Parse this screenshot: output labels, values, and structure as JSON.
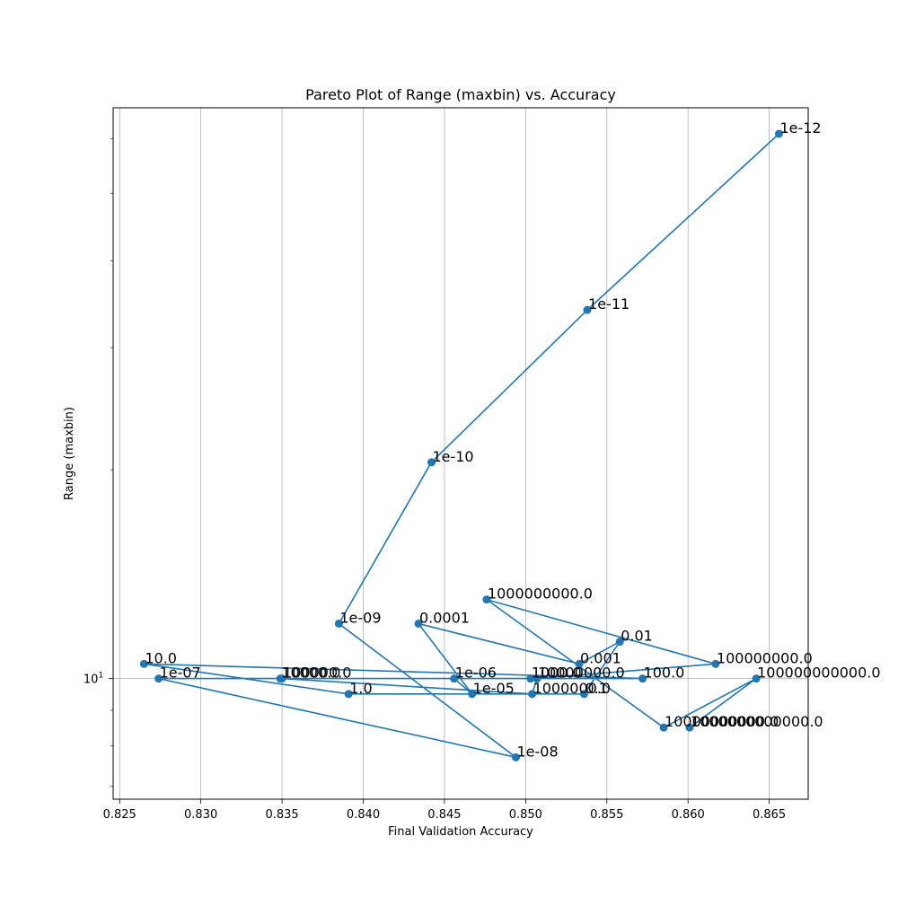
{
  "chart_data": {
    "type": "line",
    "title": "Pareto Plot of Range (maxbin) vs. Accuracy",
    "xlabel": "Final Validation Accuracy",
    "ylabel": "Range (maxbin)",
    "xlim": [
      0.8246,
      0.8674
    ],
    "ylim": [
      6.7,
      66.5
    ],
    "yscale": "log",
    "grid": "x-only",
    "line_color": "#1f77b4",
    "xticks": [
      {
        "value": 0.825,
        "label": "0.825"
      },
      {
        "value": 0.83,
        "label": "0.830"
      },
      {
        "value": 0.835,
        "label": "0.835"
      },
      {
        "value": 0.84,
        "label": "0.840"
      },
      {
        "value": 0.845,
        "label": "0.845"
      },
      {
        "value": 0.85,
        "label": "0.850"
      },
      {
        "value": 0.855,
        "label": "0.855"
      },
      {
        "value": 0.86,
        "label": "0.860"
      },
      {
        "value": 0.865,
        "label": "0.865"
      }
    ],
    "yticks_major": [
      {
        "value": 10,
        "base": "10",
        "exp": "1"
      }
    ],
    "yticks_minor": [
      7,
      8,
      9,
      20,
      30,
      40,
      50,
      60
    ],
    "points": [
      {
        "label": "1e-12",
        "x": 0.8656,
        "y": 61
      },
      {
        "label": "1e-11",
        "x": 0.8538,
        "y": 34
      },
      {
        "label": "1e-10",
        "x": 0.8442,
        "y": 20.5
      },
      {
        "label": "1e-09",
        "x": 0.8385,
        "y": 12
      },
      {
        "label": "1e-08",
        "x": 0.8494,
        "y": 7.7
      },
      {
        "label": "1e-07",
        "x": 0.8274,
        "y": 10
      },
      {
        "label": "1e-06",
        "x": 0.8456,
        "y": 10
      },
      {
        "label": "1e-05",
        "x": 0.8467,
        "y": 9.5
      },
      {
        "label": "0.0001",
        "x": 0.8434,
        "y": 12
      },
      {
        "label": "0.001",
        "x": 0.8533,
        "y": 10.5
      },
      {
        "label": "0.01",
        "x": 0.8558,
        "y": 11.3
      },
      {
        "label": "0.1",
        "x": 0.8536,
        "y": 9.5
      },
      {
        "label": "1.0",
        "x": 0.8391,
        "y": 9.5
      },
      {
        "label": "10.0",
        "x": 0.8265,
        "y": 10.5
      },
      {
        "label": "100.0",
        "x": 0.8572,
        "y": 10
      },
      {
        "label": "1000.0",
        "x": 0.8503,
        "y": 10
      },
      {
        "label": "10000.0",
        "x": 0.8349,
        "y": 10
      },
      {
        "label": "100000.0",
        "x": 0.835,
        "y": 10
      },
      {
        "label": "1000000.0",
        "x": 0.8504,
        "y": 9.5
      },
      {
        "label": "10000000.0",
        "x": 0.8507,
        "y": 10
      },
      {
        "label": "100000000.0",
        "x": 0.8617,
        "y": 10.5
      },
      {
        "label": "1000000000.0",
        "x": 0.8476,
        "y": 13
      },
      {
        "label": "10000000000.0",
        "x": 0.8585,
        "y": 8.5
      },
      {
        "label": "100000000000.0",
        "x": 0.8642,
        "y": 10
      },
      {
        "label": "1000000000000.0",
        "x": 0.8601,
        "y": 8.5
      }
    ]
  }
}
